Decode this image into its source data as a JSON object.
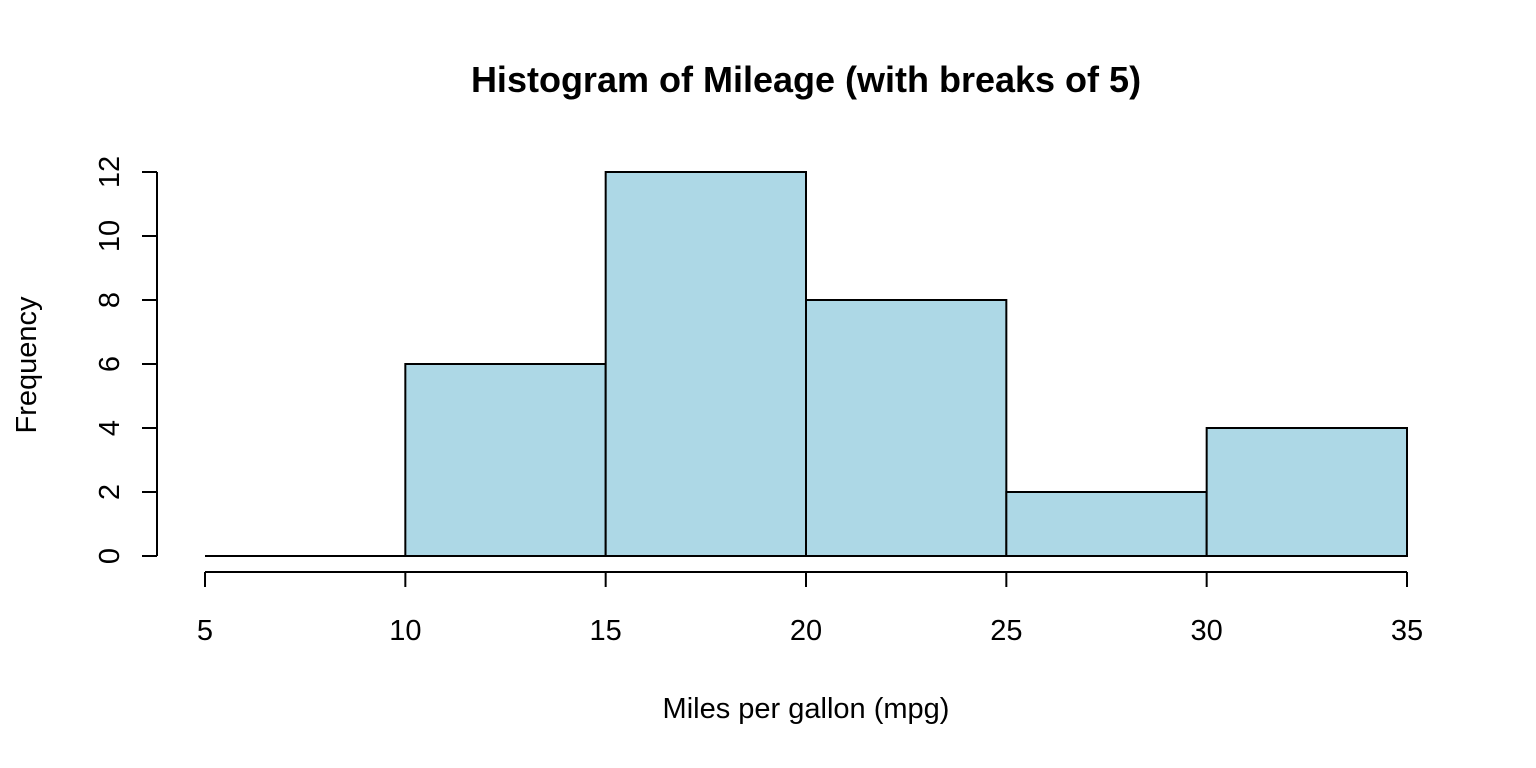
{
  "chart_data": {
    "type": "bar",
    "subtype": "histogram",
    "title": "Histogram of Mileage (with breaks of 5)",
    "xlabel": "Miles per gallon (mpg)",
    "ylabel": "Frequency",
    "breaks": [
      5,
      10,
      15,
      20,
      25,
      30,
      35
    ],
    "bins": [
      {
        "from": 5,
        "to": 10,
        "count": 0
      },
      {
        "from": 10,
        "to": 15,
        "count": 6
      },
      {
        "from": 15,
        "to": 20,
        "count": 12
      },
      {
        "from": 20,
        "to": 25,
        "count": 8
      },
      {
        "from": 25,
        "to": 30,
        "count": 2
      },
      {
        "from": 30,
        "to": 35,
        "count": 4
      }
    ],
    "xlim": [
      5,
      35
    ],
    "ylim": [
      0,
      12
    ],
    "x_ticks": [
      5,
      10,
      15,
      20,
      25,
      30,
      35
    ],
    "y_ticks": [
      0,
      2,
      4,
      6,
      8,
      10,
      12
    ],
    "bar_color": "#add8e6",
    "edge_color": "#000000",
    "grid": false,
    "legend": "none"
  }
}
